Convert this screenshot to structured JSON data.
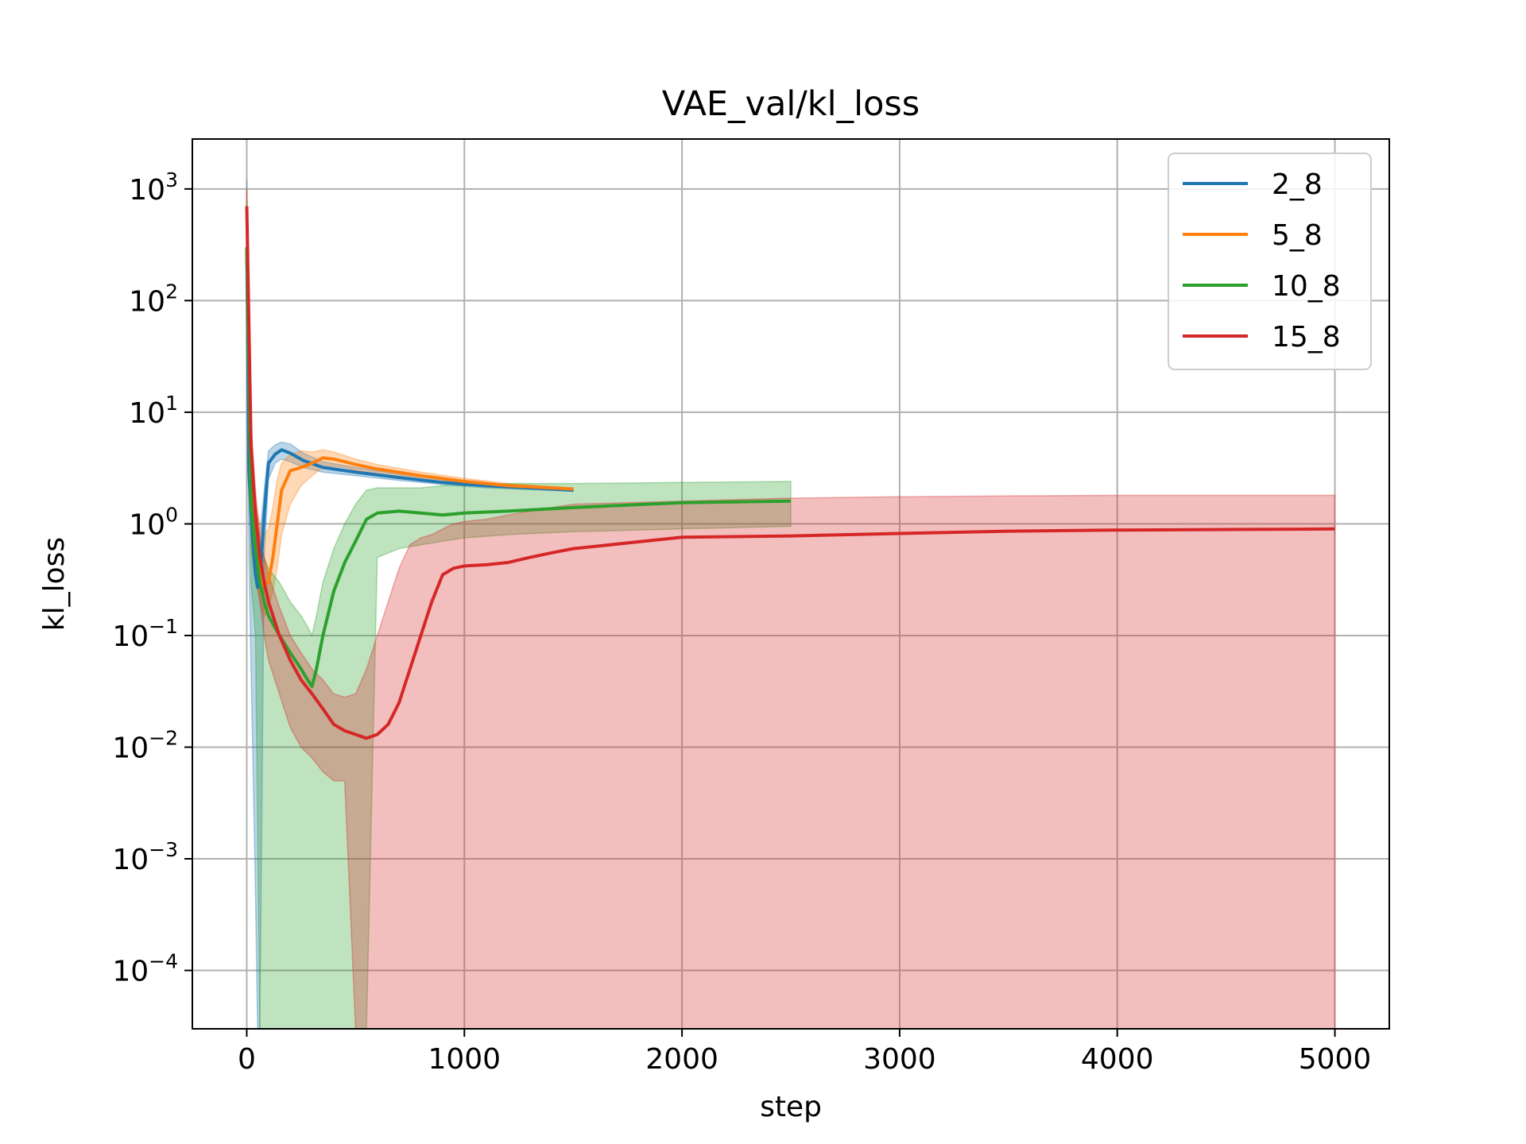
{
  "chart_data": {
    "type": "line",
    "title": "VAE_val/kl_loss",
    "xlabel": "step",
    "ylabel": "kl_loss",
    "yscale": "log",
    "xlim": [
      -250,
      5250
    ],
    "ylim": [
      3e-05,
      2800
    ],
    "x_ticks": [
      0,
      1000,
      2000,
      3000,
      4000,
      5000
    ],
    "x_tick_labels": [
      "0",
      "1000",
      "2000",
      "3000",
      "4000",
      "5000"
    ],
    "y_ticks": [
      0.0001,
      0.001,
      0.01,
      0.1,
      1,
      10,
      100,
      1000
    ],
    "y_tick_labels": [
      {
        "base": "10",
        "exp": "−4"
      },
      {
        "base": "10",
        "exp": "−3"
      },
      {
        "base": "10",
        "exp": "−2"
      },
      {
        "base": "10",
        "exp": "−1"
      },
      {
        "base": "10",
        "exp": "0"
      },
      {
        "base": "10",
        "exp": "1"
      },
      {
        "base": "10",
        "exp": "2"
      },
      {
        "base": "10",
        "exp": "3"
      }
    ],
    "grid": true,
    "legend_position": "top-right",
    "series": [
      {
        "name": "2_8",
        "color": "#1f77b4",
        "x": [
          0,
          10,
          20,
          30,
          40,
          50,
          60,
          80,
          100,
          130,
          160,
          200,
          260,
          350,
          500,
          700,
          900,
          1100,
          1300,
          1500
        ],
        "y": [
          300,
          3.0,
          1.2,
          0.6,
          0.35,
          0.27,
          0.3,
          1.2,
          3.5,
          4.2,
          4.6,
          4.3,
          3.7,
          3.2,
          2.9,
          2.6,
          2.35,
          2.2,
          2.1,
          2.0
        ],
        "band_upper": [
          1200,
          8,
          3,
          1.2,
          0.9,
          0.8,
          0.8,
          2.0,
          4.5,
          5.1,
          5.4,
          5.2,
          4.3,
          3.6,
          3.2,
          2.8,
          2.5,
          2.3,
          2.15,
          2.05
        ],
        "band_lower": [
          150,
          0.5,
          0.05,
          0.005,
          0.0005,
          3e-05,
          3e-05,
          0.5,
          2.5,
          3.5,
          3.8,
          3.6,
          3.2,
          2.9,
          2.7,
          2.45,
          2.25,
          2.1,
          2.03,
          1.97
        ]
      },
      {
        "name": "5_8",
        "color": "#ff7f0e",
        "x": [
          0,
          20,
          40,
          60,
          80,
          100,
          120,
          140,
          160,
          200,
          250,
          300,
          350,
          400,
          450,
          500,
          600,
          800,
          1000,
          1200,
          1500
        ],
        "y": [
          300,
          1.5,
          0.6,
          0.35,
          0.28,
          0.3,
          0.5,
          1.0,
          2.0,
          3.0,
          3.2,
          3.5,
          3.9,
          3.8,
          3.6,
          3.4,
          3.1,
          2.7,
          2.4,
          2.2,
          2.05
        ],
        "band_upper": [
          1000,
          4,
          1.5,
          1.0,
          0.8,
          0.9,
          1.4,
          2.5,
          3.5,
          4.2,
          4.5,
          4.4,
          4.6,
          4.4,
          4.1,
          3.8,
          3.4,
          2.9,
          2.55,
          2.3,
          2.1
        ],
        "band_lower": [
          150,
          0.6,
          0.3,
          0.2,
          0.15,
          0.18,
          0.25,
          0.4,
          0.8,
          1.5,
          2.2,
          2.7,
          3.2,
          3.3,
          3.2,
          3.0,
          2.8,
          2.5,
          2.25,
          2.1,
          2.0
        ]
      },
      {
        "name": "10_8",
        "color": "#2ca02c",
        "x": [
          0,
          20,
          40,
          60,
          80,
          100,
          150,
          200,
          250,
          280,
          300,
          320,
          350,
          400,
          450,
          500,
          550,
          600,
          700,
          800,
          900,
          1000,
          1200,
          1500,
          2000,
          2500
        ],
        "y": [
          300,
          1.5,
          0.6,
          0.3,
          0.2,
          0.15,
          0.1,
          0.07,
          0.05,
          0.04,
          0.035,
          0.05,
          0.1,
          0.25,
          0.45,
          0.7,
          1.1,
          1.25,
          1.3,
          1.25,
          1.2,
          1.25,
          1.3,
          1.4,
          1.55,
          1.6
        ],
        "band_upper": [
          800,
          4,
          1.5,
          0.7,
          0.5,
          0.4,
          0.3,
          0.2,
          0.15,
          0.12,
          0.1,
          0.15,
          0.3,
          0.6,
          1.0,
          1.5,
          2.0,
          2.1,
          2.1,
          2.1,
          2.2,
          2.2,
          2.3,
          2.3,
          2.35,
          2.4
        ],
        "band_lower": [
          100,
          0.3,
          0.1,
          3e-05,
          3e-05,
          3e-05,
          3e-05,
          3e-05,
          3e-05,
          3e-05,
          3e-05,
          3e-05,
          3e-05,
          3e-05,
          3e-05,
          3e-05,
          3e-05,
          0.5,
          0.6,
          0.65,
          0.7,
          0.75,
          0.8,
          0.85,
          0.9,
          0.95
        ]
      },
      {
        "name": "15_8",
        "color": "#d62728",
        "x": [
          0,
          20,
          40,
          60,
          80,
          100,
          150,
          200,
          250,
          300,
          350,
          400,
          450,
          500,
          550,
          600,
          650,
          700,
          750,
          800,
          850,
          900,
          950,
          1000,
          1100,
          1200,
          1300,
          1400,
          1500,
          2000,
          2500,
          3000,
          3500,
          4000,
          4500,
          5000
        ],
        "y": [
          700,
          5,
          1.2,
          0.5,
          0.3,
          0.2,
          0.1,
          0.06,
          0.04,
          0.03,
          0.022,
          0.016,
          0.014,
          0.013,
          0.012,
          0.013,
          0.016,
          0.025,
          0.05,
          0.1,
          0.2,
          0.35,
          0.4,
          0.42,
          0.43,
          0.45,
          0.5,
          0.55,
          0.6,
          0.76,
          0.78,
          0.82,
          0.86,
          0.88,
          0.89,
          0.9
        ],
        "band_upper": [
          1000,
          8,
          2.0,
          0.8,
          0.5,
          0.35,
          0.18,
          0.1,
          0.07,
          0.05,
          0.04,
          0.03,
          0.028,
          0.03,
          0.05,
          0.1,
          0.2,
          0.4,
          0.65,
          0.75,
          0.8,
          0.9,
          1.0,
          1.05,
          1.1,
          1.2,
          1.3,
          1.4,
          1.5,
          1.6,
          1.7,
          1.75,
          1.78,
          1.8,
          1.8,
          1.8
        ],
        "band_lower": [
          300,
          1.5,
          0.4,
          0.2,
          0.1,
          0.06,
          0.03,
          0.015,
          0.01,
          0.008,
          0.006,
          0.005,
          0.005,
          3e-05,
          3e-05,
          3e-05,
          3e-05,
          3e-05,
          3e-05,
          3e-05,
          3e-05,
          3e-05,
          3e-05,
          3e-05,
          3e-05,
          3e-05,
          3e-05,
          3e-05,
          3e-05,
          3e-05,
          3e-05,
          3e-05,
          3e-05,
          3e-05,
          3e-05,
          3e-05
        ]
      }
    ]
  }
}
